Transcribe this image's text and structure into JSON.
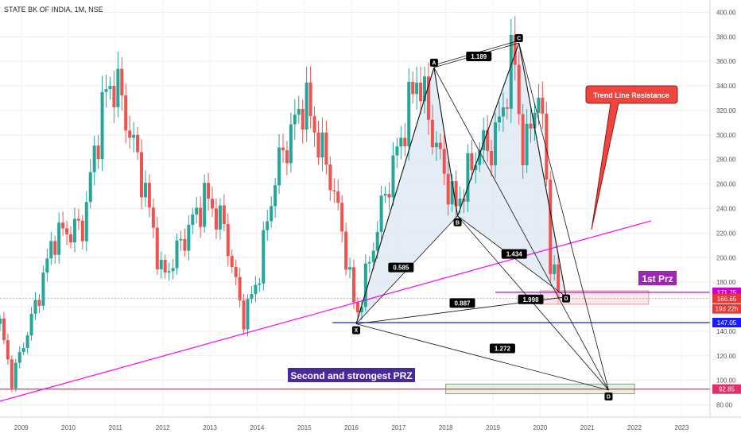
{
  "chart_data": {
    "type": "candlestick",
    "title": "STATE BK OF INDIA, 1M, NSE",
    "ylim": [
      70,
      410
    ],
    "xlim": [
      2008.55,
      2023.6
    ],
    "y_ticks": [
      "80.00",
      "100.00",
      "120.00",
      "140.00",
      "160.00",
      "180.00",
      "200.00",
      "220.00",
      "240.00",
      "260.00",
      "280.00",
      "300.00",
      "320.00",
      "340.00",
      "360.00",
      "380.00",
      "400.00"
    ],
    "x_ticks": [
      "2009",
      "2010",
      "2011",
      "2012",
      "2013",
      "2014",
      "2015",
      "2016",
      "2017",
      "2018",
      "2019",
      "2020",
      "2021",
      "2022",
      "2023"
    ],
    "colors": {
      "up": "#26a69a",
      "down": "#ef5350",
      "pattern_fill": "#dbe6f2",
      "trendline": "#ff00ff",
      "prz1": "#cc00cc",
      "support": "#1a1aff",
      "prz2": "#e0306a"
    },
    "anchors": [
      {
        "x": 2008.55,
        "y": 146
      },
      {
        "x": 2008.8,
        "y": 100
      },
      {
        "x": 2009.3,
        "y": 160
      },
      {
        "x": 2009.7,
        "y": 218
      },
      {
        "x": 2010.3,
        "y": 225
      },
      {
        "x": 2010.75,
        "y": 330
      },
      {
        "x": 2011.0,
        "y": 345
      },
      {
        "x": 2011.6,
        "y": 260
      },
      {
        "x": 2012.0,
        "y": 182
      },
      {
        "x": 2012.3,
        "y": 205
      },
      {
        "x": 2012.9,
        "y": 250
      },
      {
        "x": 2013.3,
        "y": 225
      },
      {
        "x": 2013.7,
        "y": 150
      },
      {
        "x": 2014.0,
        "y": 180
      },
      {
        "x": 2014.4,
        "y": 270
      },
      {
        "x": 2015.0,
        "y": 330
      },
      {
        "x": 2015.6,
        "y": 260
      },
      {
        "x": 2015.9,
        "y": 200
      },
      {
        "x": 2016.1,
        "y": 150
      },
      {
        "x": 2016.7,
        "y": 250
      },
      {
        "x": 2017.0,
        "y": 290
      },
      {
        "x": 2017.4,
        "y": 350
      },
      {
        "x": 2017.8,
        "y": 290
      },
      {
        "x": 2018.2,
        "y": 240
      },
      {
        "x": 2018.7,
        "y": 290
      },
      {
        "x": 2019.0,
        "y": 290
      },
      {
        "x": 2019.25,
        "y": 330
      },
      {
        "x": 2019.45,
        "y": 370
      },
      {
        "x": 2019.65,
        "y": 275
      },
      {
        "x": 2019.9,
        "y": 335
      },
      {
        "x": 2020.1,
        "y": 300
      },
      {
        "x": 2020.2,
        "y": 200
      },
      {
        "x": 2020.4,
        "y": 166
      }
    ],
    "pattern_points": [
      {
        "label": "X",
        "x": 2016.1,
        "y": 146
      },
      {
        "label": "A",
        "x": 2017.75,
        "y": 355
      },
      {
        "label": "B",
        "x": 2018.25,
        "y": 234
      },
      {
        "label": "C",
        "x": 2019.55,
        "y": 375
      },
      {
        "label": "D",
        "x": 2020.55,
        "y": 168
      },
      {
        "label": "D",
        "x": 2021.45,
        "y": 92
      }
    ],
    "ratios": [
      {
        "label": "0.585",
        "x": 2017.05,
        "y": 192
      },
      {
        "label": "1.189",
        "x": 2018.7,
        "y": 364
      },
      {
        "label": "1.434",
        "x": 2019.45,
        "y": 203
      },
      {
        "label": "0.887",
        "x": 2018.35,
        "y": 163
      },
      {
        "label": "1.998",
        "x": 2019.8,
        "y": 166
      },
      {
        "label": "1.272",
        "x": 2019.2,
        "y": 126
      }
    ],
    "trendline": {
      "x1": 2008.55,
      "y1": 83,
      "x2": 2022.35,
      "y2": 230
    },
    "prz1_zone": {
      "x1": 2020.0,
      "x2": 2022.3,
      "y_low": 162,
      "y_high": 173
    },
    "prz2_zone": {
      "x1": 2018.0,
      "x2": 2022.0,
      "y_low": 89,
      "y_high": 97
    },
    "price_tags": [
      {
        "value": 171.75,
        "text": "171.75",
        "bg": "#cc00cc"
      },
      {
        "value": 166.65,
        "text": "166.65",
        "bg": "#e53935"
      },
      {
        "value": 158.3,
        "text": "19d 22h",
        "bg": "#e53935"
      },
      {
        "value": 147.05,
        "text": "147.05",
        "bg": "#1a1aff"
      },
      {
        "value": 92.85,
        "text": "92.85",
        "bg": "#e0306a"
      }
    ],
    "annotations": {
      "trend_line_resistance": "Trend Line Resistance",
      "first_prz": "1st Prz",
      "second_prz": "Second and strongest PRZ"
    }
  }
}
